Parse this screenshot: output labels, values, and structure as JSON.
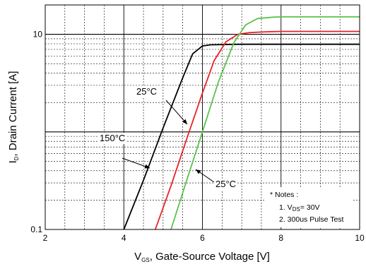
{
  "chart_data": {
    "type": "line",
    "xlabel_main": "V",
    "xlabel_sub": "GS",
    "xlabel_rest": ", Gate-Source Voltage [V]",
    "ylabel_main": "I",
    "ylabel_sub": "D",
    "ylabel_rest": ", Drain Current [A]",
    "xlim": [
      2,
      10
    ],
    "ylim": [
      0.1,
      20
    ],
    "yscale": "log",
    "grid": true,
    "x_ticks": [
      2,
      4,
      6,
      8,
      10
    ],
    "x_tick_labels": [
      "2",
      "4",
      "6",
      "8",
      "10"
    ],
    "y_ticks": [
      0.1,
      10
    ],
    "y_tick_labels": [
      "0.1",
      "10"
    ],
    "colors": {
      "black": "#000000",
      "red": "#e8222a",
      "green": "#5cc24e"
    },
    "series": [
      {
        "color": "#000000",
        "x": [
          4.0,
          4.5,
          5.0,
          5.5,
          5.75,
          6.0,
          6.2,
          6.5,
          7.0,
          8.0,
          9.0,
          10.0
        ],
        "y": [
          0.1,
          0.32,
          1.1,
          3.6,
          6.3,
          7.6,
          7.8,
          7.85,
          7.9,
          7.9,
          7.9,
          7.9
        ]
      },
      {
        "color": "#e8222a",
        "x": [
          4.8,
          5.2,
          5.6,
          6.0,
          6.3,
          6.6,
          6.9,
          7.2,
          7.6,
          8.0,
          9.0,
          10.0
        ],
        "y": [
          0.1,
          0.28,
          0.85,
          2.5,
          5.4,
          8.4,
          10.0,
          10.4,
          10.6,
          10.7,
          10.7,
          10.7
        ]
      },
      {
        "color": "#5cc24e",
        "x": [
          5.2,
          5.6,
          6.0,
          6.4,
          6.8,
          7.1,
          7.4,
          7.8,
          8.0,
          9.0,
          10.0
        ],
        "y": [
          0.1,
          0.32,
          1.0,
          3.2,
          8.2,
          12.5,
          14.5,
          15.0,
          15.1,
          15.1,
          15.1
        ]
      }
    ],
    "annotations": [
      {
        "label_main": "25",
        "label_unit": "°C",
        "x": 5.15,
        "y": 3.5
      },
      {
        "label_main": "150",
        "label_unit": "°C",
        "x": 3.3,
        "y": 1.0
      },
      {
        "label_main": "25",
        "label_unit": "°C",
        "x": 6.6,
        "y": 0.33
      }
    ],
    "notes": {
      "title": "* Notes :",
      "line1_prefix": "1. V",
      "line1_sub": "DS",
      "line1_rest": "= 30V",
      "line2": "2. 300us Pulse Test"
    }
  }
}
